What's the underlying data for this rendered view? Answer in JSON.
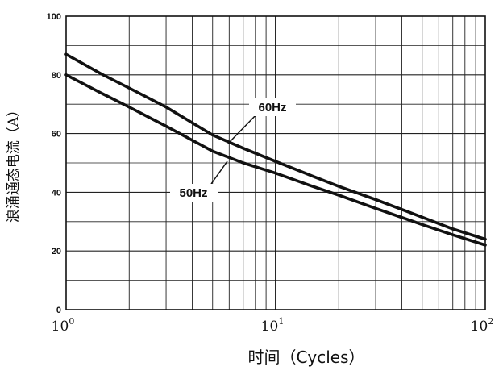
{
  "chart_data": {
    "type": "line",
    "xscale": "log",
    "xlim": [
      1,
      100
    ],
    "ylim": [
      0,
      100
    ],
    "grid": true,
    "xlabel": "时间（Cycles）",
    "ylabel": "浪涌通态电流（A）",
    "yticks": [
      "0",
      "20",
      "40",
      "60",
      "80",
      "100"
    ],
    "xticks": [
      {
        "base": "10",
        "exp": "0"
      },
      {
        "base": "10",
        "exp": "1"
      },
      {
        "base": "10",
        "exp": "2"
      }
    ],
    "series": [
      {
        "name": "60Hz",
        "x": [
          1,
          1.5,
          2,
          3,
          5,
          7,
          10,
          15,
          20,
          30,
          50,
          70,
          100
        ],
        "y": [
          87,
          80,
          75.5,
          69,
          59.5,
          55,
          50.5,
          45.5,
          42,
          37.5,
          31.5,
          27.5,
          24
        ]
      },
      {
        "name": "50Hz",
        "x": [
          1,
          1.5,
          2,
          3,
          5,
          7,
          10,
          15,
          20,
          30,
          50,
          70,
          100
        ],
        "y": [
          80,
          73.5,
          69,
          62.5,
          54,
          50,
          46.5,
          42,
          39,
          34.5,
          29,
          25.5,
          22
        ]
      }
    ]
  }
}
